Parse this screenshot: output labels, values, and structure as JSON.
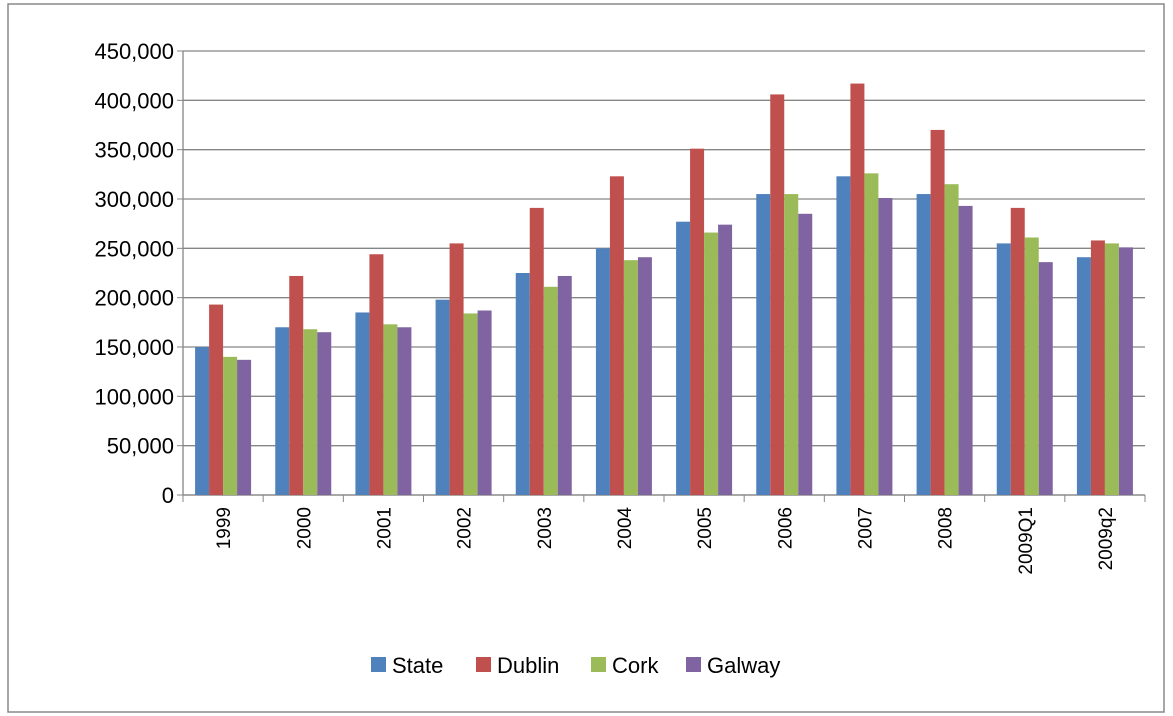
{
  "chart_data": {
    "type": "bar",
    "categories": [
      "1999",
      "2000",
      "2001",
      "2002",
      "2003",
      "2004",
      "2005",
      "2006",
      "2007",
      "2008",
      "2009Q1",
      "2009q2"
    ],
    "series": [
      {
        "name": "State",
        "color": "#4f81bd",
        "values": [
          150000,
          170000,
          185000,
          198000,
          225000,
          250000,
          277000,
          305000,
          323000,
          305000,
          255000,
          241000
        ]
      },
      {
        "name": "Dublin",
        "color": "#c0504d",
        "values": [
          193000,
          222000,
          244000,
          255000,
          291000,
          323000,
          351000,
          406000,
          417000,
          370000,
          291000,
          258000
        ]
      },
      {
        "name": "Cork",
        "color": "#9bbb59",
        "values": [
          140000,
          168000,
          173000,
          184000,
          211000,
          238000,
          266000,
          305000,
          326000,
          315000,
          261000,
          255000
        ]
      },
      {
        "name": "Galway",
        "color": "#8064a2",
        "values": [
          137000,
          165000,
          170000,
          187000,
          222000,
          241000,
          274000,
          285000,
          301000,
          293000,
          236000,
          251000
        ]
      }
    ],
    "ylim": [
      0,
      450000
    ],
    "yticks": [
      0,
      {
        "value": 50000,
        "label": "50,000"
      },
      {
        "value": 100000,
        "label": "100,000"
      },
      {
        "value": 150000,
        "label": "150,000"
      },
      {
        "value": 200000,
        "label": "200,000"
      },
      {
        "value": 250000,
        "label": "250,000"
      },
      {
        "value": 300000,
        "label": "300,000"
      },
      {
        "value": 350000,
        "label": "350,000"
      },
      {
        "value": 400000,
        "label": "400,000"
      },
      {
        "value": 450000,
        "label": "450,000"
      }
    ],
    "grid": true,
    "legend": "bottom"
  }
}
